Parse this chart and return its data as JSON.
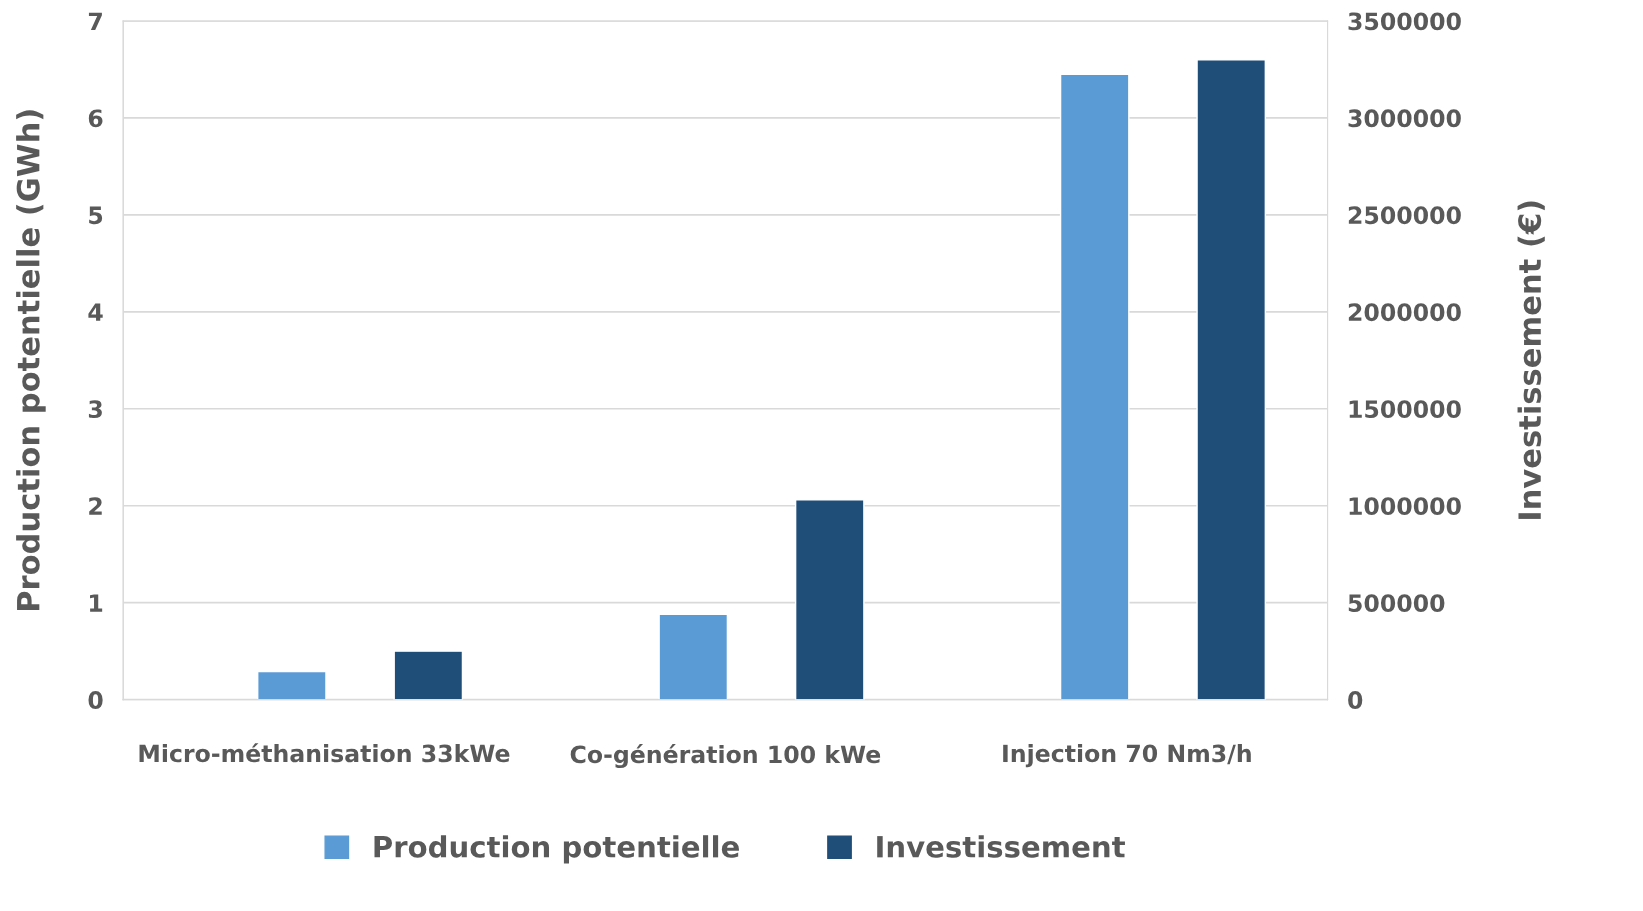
{
  "chart_data": {
    "type": "bar",
    "ylabel": "Production potentielle (GWh)",
    "y2label": "Investissement (€)",
    "categories": [
      "Micro-méthanisation 33kWe",
      "Co-génération 100 kWe",
      "Injection 70 Nm3/h"
    ],
    "series": [
      {
        "name": "Production potentielle",
        "color": "#5b9bd5",
        "values": [
          0.29,
          0.88,
          6.45
        ]
      },
      {
        "name": "Investissement",
        "color": "#1f4e79",
        "axis": "y2",
        "values": [
          250000,
          1030000,
          3300000
        ]
      }
    ],
    "ylim": [
      0,
      7
    ],
    "yticks": [
      0,
      1,
      2,
      3,
      4,
      5,
      6,
      7
    ],
    "y2lim": [
      0,
      3500000
    ],
    "y2ticks": [
      0,
      500000,
      1000000,
      1500000,
      2000000,
      2500000,
      3000000,
      3500000
    ],
    "grid": "y",
    "legend": "bottom"
  }
}
